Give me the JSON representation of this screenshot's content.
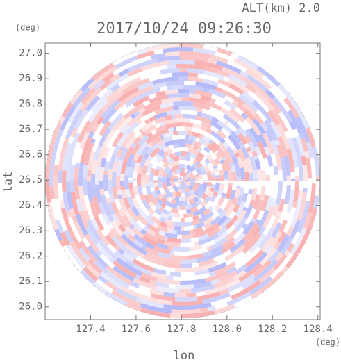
{
  "chart_data": {
    "type": "image",
    "title": "2017/10/24 09:26:30",
    "annotation": "ALT(km) 2.0",
    "xlabel": "lon",
    "ylabel": "lat",
    "xunit": "(deg)",
    "yunit": "(deg)",
    "xlim": [
      127.2,
      128.41
    ],
    "ylim": [
      25.95,
      27.04
    ],
    "xticks": [
      127.4,
      127.6,
      127.8,
      {
        "value": 128.0,
        "label": "128.0"
      },
      128.2,
      128.4
    ],
    "yticks": [
      {
        "value": 26.0,
        "label": "26.0"
      },
      26.1,
      26.2,
      26.3,
      26.4,
      26.5,
      26.6,
      26.7,
      26.8,
      26.9,
      {
        "value": 27.0,
        "label": "27.0"
      }
    ]
  }
}
